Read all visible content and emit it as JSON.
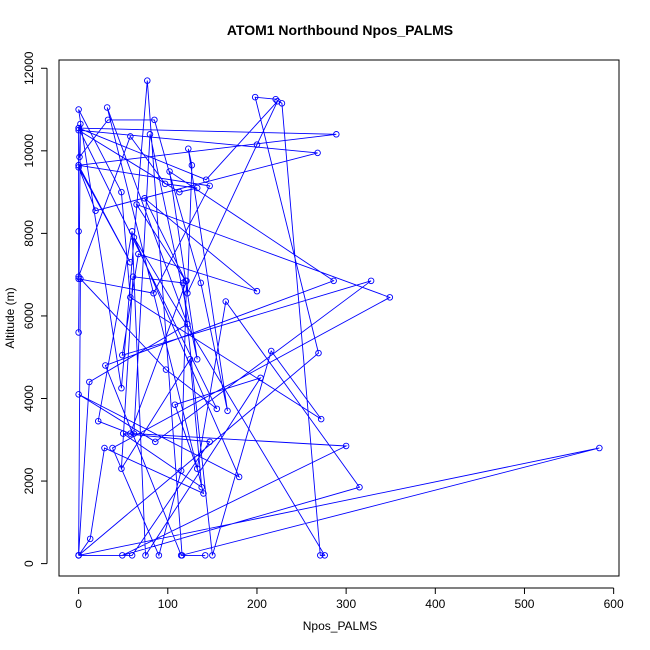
{
  "chart_data": {
    "type": "line",
    "title": "ATOM1 Northbound Npos_PALMS",
    "xlabel": "Npos_PALMS",
    "ylabel": "Altitude (m)",
    "xlim": [
      -22,
      606
    ],
    "ylim": [
      -300,
      12200
    ],
    "xticks": [
      0,
      100,
      200,
      300,
      400,
      500,
      600
    ],
    "yticks": [
      0,
      2000,
      4000,
      6000,
      8000,
      10000,
      12000
    ],
    "grid": false,
    "legend": "none",
    "color": "#0000ff",
    "x": [
      0,
      2,
      1,
      33,
      85,
      137,
      167,
      123,
      127,
      122,
      200,
      223,
      143,
      0,
      0,
      0,
      58,
      97,
      133,
      113,
      0,
      268,
      19,
      0,
      58,
      0,
      0,
      84,
      147,
      0,
      289,
      0,
      155,
      98,
      2,
      0,
      12,
      122,
      32,
      140,
      29,
      13,
      0,
      269,
      198,
      221,
      228,
      271,
      276,
      62,
      180,
      0,
      86,
      328,
      49,
      67,
      200,
      74,
      120,
      65,
      349,
      38,
      90,
      115,
      121,
      58,
      22,
      60,
      75,
      204,
      108,
      133,
      165,
      315,
      49,
      300,
      62,
      80,
      133,
      102,
      286,
      30,
      115,
      584,
      0,
      60,
      147,
      50,
      138,
      125,
      48,
      61,
      117,
      150,
      216,
      272,
      58,
      48,
      0,
      48,
      77,
      116,
      142
    ],
    "y": [
      5600,
      10650,
      9850,
      10750,
      10750,
      6800,
      3700,
      10050,
      9650,
      6550,
      10150,
      11200,
      9300,
      10550,
      8050,
      6950,
      10350,
      9200,
      9100,
      9000,
      10500,
      9950,
      8550,
      9600,
      7300,
      9650,
      6900,
      6550,
      9150,
      9650,
      10400,
      10550,
      3750,
      4700,
      6900,
      200,
      4400,
      5800,
      11050,
      1700,
      2800,
      600,
      200,
      5100,
      11300,
      11250,
      11150,
      200,
      200,
      7900,
      2100,
      4100,
      2950,
      6850,
      5050,
      7500,
      6600,
      8850,
      6850,
      8700,
      6450,
      2800,
      200,
      2250,
      6850,
      3150,
      3450,
      8050,
      200,
      4500,
      3850,
      2300,
      6350,
      1850,
      200,
      2850,
      3150,
      10400,
      4950,
      9500,
      6850,
      4800,
      200,
      2800,
      200,
      200,
      2950,
      3150,
      1850,
      4950,
      2300,
      6950,
      6800,
      200,
      5150,
      3500,
      6450,
      9000,
      11000,
      4250,
      11700,
      200,
      200
    ]
  }
}
